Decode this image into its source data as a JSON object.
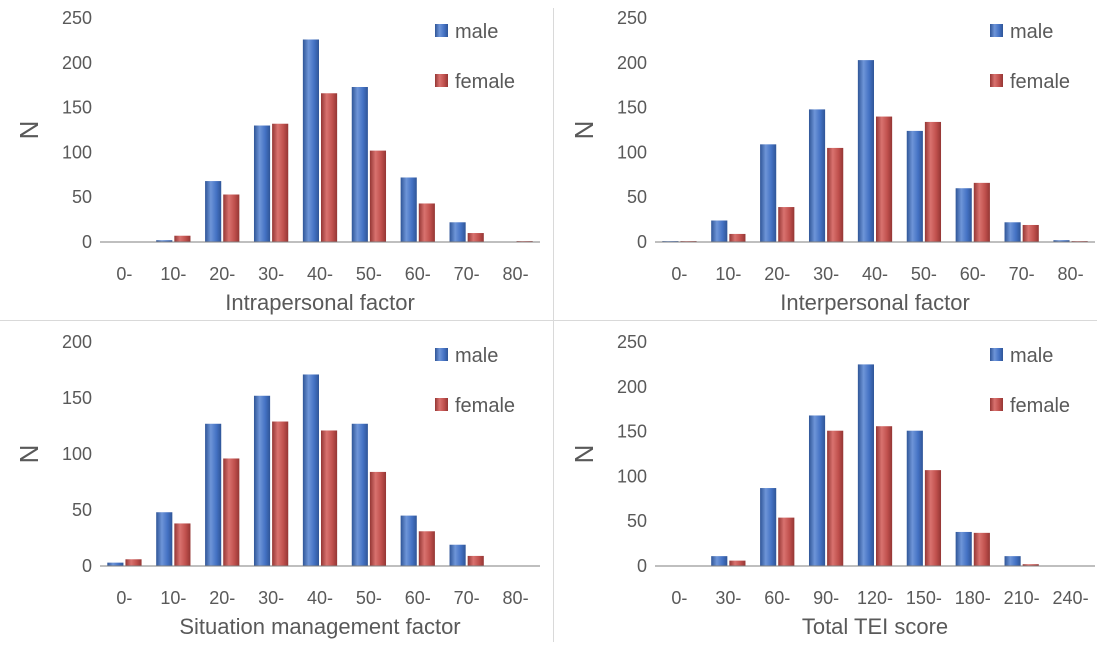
{
  "colors": {
    "male": "#4472c4",
    "female": "#c0504d",
    "text": "#595959",
    "axis": "#7f7f7f",
    "divider": "#d9d9d9"
  },
  "chart_data": [
    {
      "type": "bar",
      "categories": [
        "0-",
        "10-",
        "20-",
        "30-",
        "40-",
        "50-",
        "60-",
        "70-",
        "80-"
      ],
      "series": [
        {
          "name": "male",
          "values": [
            0,
            2,
            68,
            130,
            226,
            173,
            72,
            22,
            0
          ]
        },
        {
          "name": "female",
          "values": [
            0,
            7,
            53,
            132,
            166,
            102,
            43,
            10,
            1
          ]
        }
      ],
      "title": "",
      "xlabel": "Intrapersonal factor",
      "ylabel": "N",
      "ylim": [
        0,
        250
      ],
      "yticks": [
        0,
        50,
        100,
        150,
        200,
        250
      ],
      "grid": false,
      "legend": "top-right"
    },
    {
      "type": "bar",
      "categories": [
        "0-",
        "10-",
        "20-",
        "30-",
        "40-",
        "50-",
        "60-",
        "70-",
        "80-"
      ],
      "series": [
        {
          "name": "male",
          "values": [
            1,
            24,
            109,
            148,
            203,
            124,
            60,
            22,
            2
          ]
        },
        {
          "name": "female",
          "values": [
            1,
            9,
            39,
            105,
            140,
            134,
            66,
            19,
            1
          ]
        }
      ],
      "title": "",
      "xlabel": "Interpersonal factor",
      "ylabel": "N",
      "ylim": [
        0,
        250
      ],
      "yticks": [
        0,
        50,
        100,
        150,
        200,
        250
      ],
      "grid": false,
      "legend": "top-right"
    },
    {
      "type": "bar",
      "categories": [
        "0-",
        "10-",
        "20-",
        "30-",
        "40-",
        "50-",
        "60-",
        "70-",
        "80-"
      ],
      "series": [
        {
          "name": "male",
          "values": [
            3,
            48,
            127,
            152,
            171,
            127,
            45,
            19,
            0
          ]
        },
        {
          "name": "female",
          "values": [
            6,
            38,
            96,
            129,
            121,
            84,
            31,
            9,
            0
          ]
        }
      ],
      "title": "",
      "xlabel": "Situation management factor",
      "ylabel": "N",
      "ylim": [
        0,
        200
      ],
      "yticks": [
        0,
        50,
        100,
        150,
        200
      ],
      "grid": false,
      "legend": "top-right"
    },
    {
      "type": "bar",
      "categories": [
        "0-",
        "30-",
        "60-",
        "90-",
        "120-",
        "150-",
        "180-",
        "210-",
        "240-"
      ],
      "series": [
        {
          "name": "male",
          "values": [
            0,
            11,
            87,
            168,
            225,
            151,
            38,
            11,
            0
          ]
        },
        {
          "name": "female",
          "values": [
            0,
            6,
            54,
            151,
            156,
            107,
            37,
            2,
            0
          ]
        }
      ],
      "title": "",
      "xlabel": "Total TEI score",
      "ylabel": "N",
      "ylim": [
        0,
        250
      ],
      "yticks": [
        0,
        50,
        100,
        150,
        200,
        250
      ],
      "grid": false,
      "legend": "top-right"
    }
  ]
}
